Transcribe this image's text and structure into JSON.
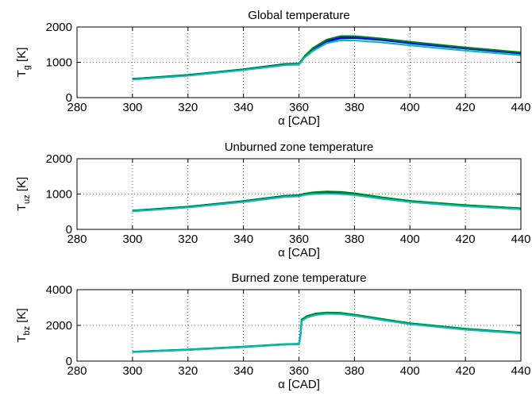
{
  "chart_data": [
    {
      "type": "line",
      "title": "Global temperature",
      "xlabel": "α [CAD]",
      "ylabel_main": "T",
      "ylabel_sub": "g",
      "ylabel_unit": " [K]",
      "xlim": [
        280,
        440
      ],
      "ylim": [
        0,
        2000
      ],
      "xticks": [
        280,
        300,
        320,
        340,
        360,
        380,
        400,
        420,
        440
      ],
      "yticks": [
        0,
        1000,
        2000
      ],
      "grid": true,
      "series": [
        {
          "color": "#00008b",
          "x": [
            300,
            320,
            340,
            355,
            360,
            362,
            365,
            370,
            375,
            380,
            390,
            400,
            420,
            440
          ],
          "y": [
            530,
            640,
            800,
            950,
            960,
            1160,
            1380,
            1620,
            1720,
            1725,
            1660,
            1570,
            1410,
            1270
          ]
        },
        {
          "color": "#0000ff",
          "x": [
            300,
            320,
            340,
            355,
            360,
            362,
            365,
            370,
            375,
            380,
            390,
            400,
            420,
            440
          ],
          "y": [
            520,
            630,
            790,
            930,
            945,
            1150,
            1350,
            1580,
            1680,
            1690,
            1630,
            1540,
            1390,
            1250
          ]
        },
        {
          "color": "#008000",
          "x": [
            300,
            320,
            340,
            355,
            360,
            362,
            365,
            370,
            375,
            380,
            390,
            400,
            420,
            440
          ],
          "y": [
            525,
            635,
            795,
            940,
            955,
            1170,
            1400,
            1640,
            1740,
            1740,
            1670,
            1580,
            1420,
            1280
          ]
        },
        {
          "color": "#00bfbf",
          "x": [
            300,
            320,
            340,
            355,
            360,
            362,
            365,
            370,
            375,
            380,
            390,
            400,
            420,
            440
          ],
          "y": [
            510,
            620,
            780,
            920,
            935,
            1130,
            1320,
            1540,
            1620,
            1620,
            1560,
            1480,
            1330,
            1200
          ]
        }
      ]
    },
    {
      "type": "line",
      "title": "Unburned zone temperature",
      "xlabel": "α [CAD]",
      "ylabel_main": "T",
      "ylabel_sub": "uz",
      "ylabel_unit": " [K]",
      "xlim": [
        280,
        440
      ],
      "ylim": [
        0,
        2000
      ],
      "xticks": [
        280,
        300,
        320,
        340,
        360,
        380,
        400,
        420,
        440
      ],
      "yticks": [
        0,
        1000,
        2000
      ],
      "grid": true,
      "series": [
        {
          "color": "#00008b",
          "x": [
            300,
            320,
            340,
            355,
            360,
            362,
            365,
            370,
            375,
            380,
            390,
            400,
            420,
            440
          ],
          "y": [
            530,
            640,
            800,
            950,
            965,
            1010,
            1040,
            1060,
            1050,
            1010,
            900,
            800,
            680,
            590
          ]
        },
        {
          "color": "#0000ff",
          "x": [
            300,
            320,
            340,
            355,
            360,
            362,
            365,
            370,
            375,
            380,
            390,
            400,
            420,
            440
          ],
          "y": [
            520,
            630,
            785,
            930,
            945,
            985,
            1010,
            1025,
            1015,
            985,
            880,
            785,
            665,
            580
          ]
        },
        {
          "color": "#008000",
          "x": [
            300,
            320,
            340,
            355,
            360,
            362,
            365,
            370,
            375,
            380,
            390,
            400,
            420,
            440
          ],
          "y": [
            525,
            635,
            795,
            945,
            960,
            1005,
            1045,
            1070,
            1060,
            1020,
            905,
            805,
            685,
            595
          ]
        },
        {
          "color": "#00bfbf",
          "x": [
            300,
            320,
            340,
            355,
            360,
            362,
            365,
            370,
            375,
            380,
            390,
            400,
            420,
            440
          ],
          "y": [
            510,
            620,
            775,
            920,
            935,
            975,
            1000,
            1010,
            1000,
            970,
            865,
            775,
            655,
            570
          ]
        }
      ]
    },
    {
      "type": "line",
      "title": "Burned zone temperature",
      "xlabel": "α [CAD]",
      "ylabel_main": "T",
      "ylabel_sub": "bz",
      "ylabel_unit": " [K]",
      "xlim": [
        280,
        440
      ],
      "ylim": [
        0,
        4000
      ],
      "xticks": [
        280,
        300,
        320,
        340,
        360,
        380,
        400,
        420,
        440
      ],
      "yticks": [
        0,
        2000,
        4000
      ],
      "grid": true,
      "series": [
        {
          "color": "#00008b",
          "x": [
            300,
            320,
            340,
            355,
            360,
            360.5,
            361,
            363,
            366,
            370,
            375,
            380,
            390,
            400,
            420,
            440
          ],
          "y": [
            520,
            640,
            800,
            940,
            960,
            1400,
            2300,
            2500,
            2630,
            2700,
            2680,
            2580,
            2340,
            2110,
            1800,
            1580
          ]
        },
        {
          "color": "#0000ff",
          "x": [
            300,
            320,
            340,
            355,
            360,
            360.5,
            361,
            363,
            366,
            370,
            375,
            380,
            390,
            400,
            420,
            440
          ],
          "y": [
            510,
            630,
            790,
            930,
            950,
            1380,
            2270,
            2470,
            2600,
            2670,
            2650,
            2560,
            2320,
            2090,
            1780,
            1560
          ]
        },
        {
          "color": "#008000",
          "x": [
            300,
            320,
            340,
            355,
            360,
            360.5,
            361,
            363,
            366,
            370,
            375,
            380,
            390,
            400,
            420,
            440
          ],
          "y": [
            525,
            645,
            805,
            945,
            965,
            1420,
            2330,
            2530,
            2660,
            2720,
            2700,
            2600,
            2360,
            2120,
            1810,
            1590
          ]
        },
        {
          "color": "#00bfbf",
          "x": [
            300,
            320,
            340,
            355,
            360,
            360.5,
            361,
            363,
            366,
            370,
            375,
            380,
            390,
            400,
            420,
            440
          ],
          "y": [
            505,
            625,
            785,
            925,
            945,
            1360,
            2250,
            2450,
            2580,
            2650,
            2630,
            2540,
            2300,
            2070,
            1760,
            1550
          ]
        }
      ]
    }
  ]
}
